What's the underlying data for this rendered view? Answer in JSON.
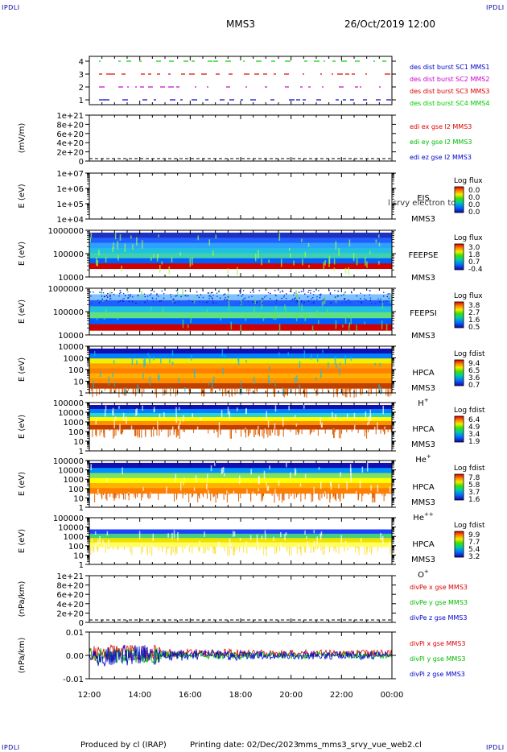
{
  "corner_label": "IPDLI",
  "header": {
    "spacecraft": "MMS3",
    "datetime": "26/Oct/2019 12:00"
  },
  "footer": {
    "produced_by": "Produced by cl (IRAP)",
    "printing_date": "Printing date: 02/Dec/2023",
    "script": "mms_mms3_srvy_vue_web2.cl"
  },
  "x_axis": {
    "ticks": [
      "12:00",
      "14:00",
      "16:00",
      "18:00",
      "20:00",
      "22:00",
      "00:00"
    ]
  },
  "chart_data": [
    {
      "type": "scatter",
      "id": "burst",
      "y_ticks": [
        "4",
        "3",
        "2",
        "1"
      ],
      "legend": [
        {
          "label": "des dist burst SC1 MMS1",
          "color": "#0000cc"
        },
        {
          "label": "des dist burst SC2 MMS2",
          "color": "#cc00cc"
        },
        {
          "label": "des dist burst SC3 MMS3",
          "color": "#dd0000"
        },
        {
          "label": "des dist burst SC4 MMS4",
          "color": "#00cc00"
        }
      ]
    },
    {
      "type": "line",
      "id": "edi",
      "ylabel": "(mV/m)",
      "y_ticks": [
        "1e+21",
        "8e+20",
        "6e+20",
        "4e+20",
        "2e+20",
        "0"
      ],
      "legend": [
        {
          "label": "edi ex gse l2 MMS3",
          "color": "#dd0000"
        },
        {
          "label": "edi ey gse l2 MMS3",
          "color": "#00bb00"
        },
        {
          "label": "edi ez gse l2 MMS3",
          "color": "#0000cc"
        }
      ]
    },
    {
      "type": "heatmap",
      "id": "eis",
      "ylabel": "E (eV)",
      "y_ticks": [
        "1e+07",
        "1e+06",
        "1e+05",
        "1e+04"
      ],
      "inst": [
        "EIS",
        "MMS3"
      ],
      "overlay": "l srvy electron to",
      "colorbar": {
        "title": "Log flux",
        "values": [
          "0.0",
          "0.0",
          "0.0",
          "0.0"
        ]
      }
    },
    {
      "type": "heatmap",
      "id": "feepse",
      "ylabel": "E (eV)",
      "y_ticks": [
        "1000000",
        "100000",
        "10000"
      ],
      "inst": [
        "FEEPSE",
        "MMS3"
      ],
      "colorbar": {
        "title": "Log flux",
        "values": [
          "3.0",
          "1.8",
          "0.7",
          "-0.4"
        ]
      }
    },
    {
      "type": "heatmap",
      "id": "feepsi",
      "ylabel": "E (eV)",
      "y_ticks": [
        "1000000",
        "100000",
        "10000"
      ],
      "inst": [
        "FEEPSI",
        "MMS3"
      ],
      "colorbar": {
        "title": "Log flux",
        "values": [
          "3.8",
          "2.7",
          "1.6",
          "0.5"
        ]
      }
    },
    {
      "type": "heatmap",
      "id": "hpca_h",
      "ylabel": "E (eV)",
      "y_ticks": [
        "10000",
        "1000",
        "100",
        "10",
        "1"
      ],
      "inst": [
        "HPCA",
        "MMS3"
      ],
      "species": "H",
      "charge": "+",
      "colorbar": {
        "title": "Log fdist",
        "values": [
          "9.4",
          "6.5",
          "3.6",
          "0.7"
        ]
      }
    },
    {
      "type": "heatmap",
      "id": "hpca_he",
      "ylabel": "E (eV)",
      "y_ticks": [
        "100000",
        "10000",
        "1000",
        "100",
        "10",
        "1"
      ],
      "inst": [
        "HPCA",
        "MMS3"
      ],
      "species": "He",
      "charge": "+",
      "colorbar": {
        "title": "Log fdist",
        "values": [
          "6.4",
          "4.9",
          "3.4",
          "1.9"
        ]
      }
    },
    {
      "type": "heatmap",
      "id": "hpca_he2",
      "ylabel": "E (eV)",
      "y_ticks": [
        "100000",
        "10000",
        "1000",
        "100",
        "10",
        "1"
      ],
      "inst": [
        "HPCA",
        "MMS3"
      ],
      "species": "He",
      "charge": "++",
      "colorbar": {
        "title": "Log fdist",
        "values": [
          "7.8",
          "5.8",
          "3.7",
          "1.6"
        ]
      }
    },
    {
      "type": "heatmap",
      "id": "hpca_o",
      "ylabel": "E (eV)",
      "y_ticks": [
        "100000",
        "10000",
        "1000",
        "100",
        "10",
        "1"
      ],
      "inst": [
        "HPCA",
        "MMS3"
      ],
      "species": "O",
      "charge": "+",
      "colorbar": {
        "title": "Log fdist",
        "values": [
          "9.9",
          "7.7",
          "5.4",
          "3.2"
        ]
      }
    },
    {
      "type": "line",
      "id": "divpe",
      "ylabel": "(nPa/km)",
      "y_ticks": [
        "1e+21",
        "8e+20",
        "6e+20",
        "4e+20",
        "2e+20",
        "0"
      ],
      "legend": [
        {
          "label": "divPe x gse MMS3",
          "color": "#dd0000"
        },
        {
          "label": "divPe y gse MMS3",
          "color": "#00bb00"
        },
        {
          "label": "divPe z gse MMS3",
          "color": "#0000cc"
        }
      ]
    },
    {
      "type": "line",
      "id": "divpi",
      "ylabel": "(nPa/km)",
      "y_ticks": [
        "0.01",
        "0.00",
        "-0.01"
      ],
      "legend": [
        {
          "label": "divPi x gse MMS3",
          "color": "#dd0000"
        },
        {
          "label": "divPi y gse MMS3",
          "color": "#00bb00"
        },
        {
          "label": "divPi z gse MMS3",
          "color": "#0000cc"
        }
      ]
    }
  ]
}
